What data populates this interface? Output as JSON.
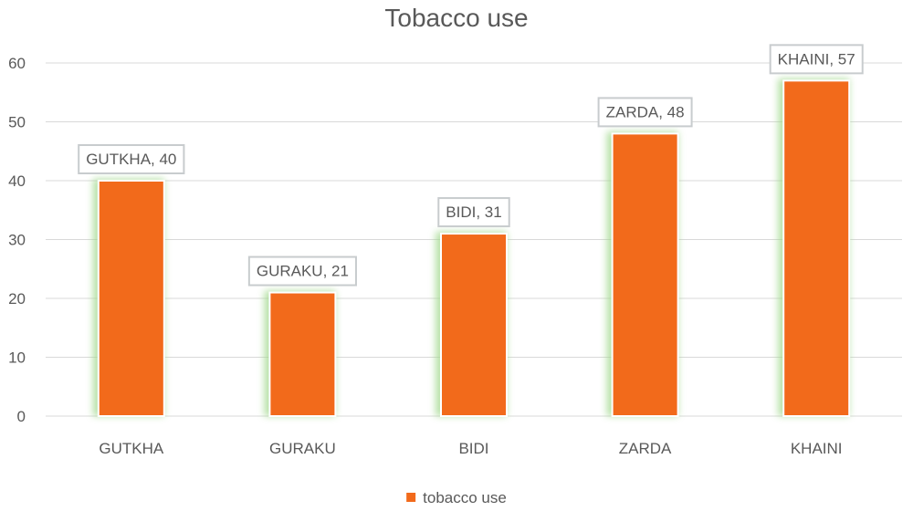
{
  "chart_data": {
    "type": "bar",
    "title": "Tobacco use",
    "categories": [
      "GUTKHA",
      "GURAKU",
      "BIDI",
      "ZARDA",
      "KHAINI"
    ],
    "series": [
      {
        "name": "tobacco use",
        "values": [
          40,
          21,
          31,
          48,
          57
        ],
        "color": "#f26a1b"
      }
    ],
    "data_labels": [
      "GUTKHA, 40",
      "GURAKU, 21",
      "BIDI, 31",
      "ZARDA, 48",
      "KHAINI, 57"
    ],
    "ylim": [
      0,
      60
    ],
    "yticks": [
      "0",
      "10",
      "20",
      "30",
      "40",
      "50",
      "60"
    ],
    "xlabel": "",
    "ylabel": "",
    "grid": true,
    "legend_position": "bottom",
    "glow_color": "#9fd88a"
  }
}
